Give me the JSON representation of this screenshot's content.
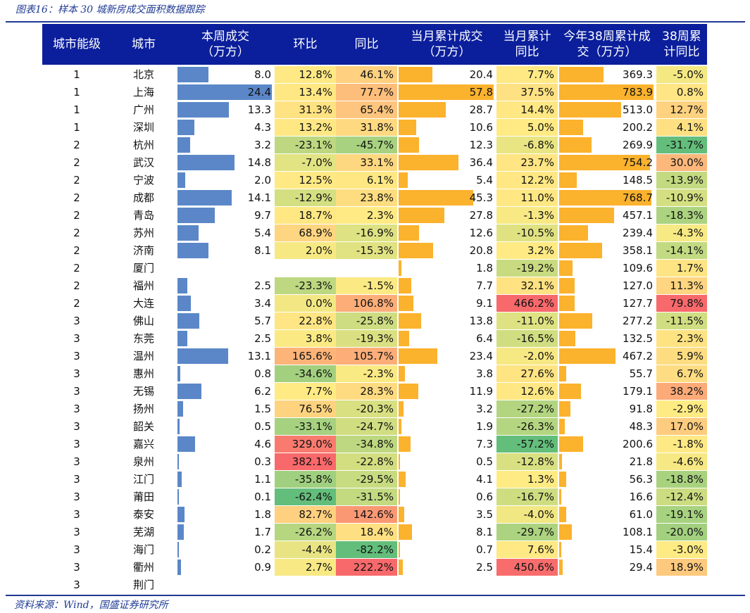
{
  "caption": "图表16：样本 30 城新房成交面积数据跟踪",
  "source": "资料来源：Wind，国盛证券研究所",
  "headers": {
    "tier": "城市能级",
    "city": "城市",
    "week": "本周成交\n（万方）",
    "mom": "环比",
    "yoy": "同比",
    "month": "当月累计成交\n（万方）",
    "month_yoy": "当月累计\n同比",
    "ytd": "今年38周累计成\n交（万方）",
    "ytd_yoy": "38周累\n计同比"
  },
  "colors": {
    "header_bg": "#0b1f9c",
    "bar_blue": "#5b87c8",
    "bar_orange": "#fbb22d",
    "scale_red": "#f8696b",
    "scale_yellow": "#ffeb84",
    "scale_green": "#63be7b"
  },
  "scales": {
    "week_max": 24.4,
    "month_max": 57.8,
    "ytd_max": 783.9
  },
  "rows": [
    {
      "tier": "1",
      "city": "北京",
      "week": "8.0",
      "mom": "12.8%",
      "yoy": "46.1%",
      "month": "20.4",
      "month_yoy": "7.7%",
      "ytd": "369.3",
      "ytd_yoy": "-5.0%"
    },
    {
      "tier": "1",
      "city": "上海",
      "week": "24.4",
      "mom": "13.4%",
      "yoy": "77.7%",
      "month": "57.8",
      "month_yoy": "37.5%",
      "ytd": "783.9",
      "ytd_yoy": "0.8%"
    },
    {
      "tier": "1",
      "city": "广州",
      "week": "13.3",
      "mom": "31.3%",
      "yoy": "65.4%",
      "month": "28.7",
      "month_yoy": "14.4%",
      "ytd": "513.0",
      "ytd_yoy": "12.7%"
    },
    {
      "tier": "1",
      "city": "深圳",
      "week": "4.3",
      "mom": "13.2%",
      "yoy": "31.8%",
      "month": "10.6",
      "month_yoy": "5.0%",
      "ytd": "200.2",
      "ytd_yoy": "4.1%"
    },
    {
      "tier": "2",
      "city": "杭州",
      "week": "3.2",
      "mom": "-23.1%",
      "yoy": "-45.7%",
      "month": "12.3",
      "month_yoy": "-6.8%",
      "ytd": "269.9",
      "ytd_yoy": "-31.7%"
    },
    {
      "tier": "2",
      "city": "武汉",
      "week": "14.8",
      "mom": "-7.0%",
      "yoy": "33.1%",
      "month": "36.4",
      "month_yoy": "23.7%",
      "ytd": "754.2",
      "ytd_yoy": "30.0%"
    },
    {
      "tier": "2",
      "city": "宁波",
      "week": "2.0",
      "mom": "12.5%",
      "yoy": "6.1%",
      "month": "5.4",
      "month_yoy": "12.2%",
      "ytd": "148.5",
      "ytd_yoy": "-13.9%"
    },
    {
      "tier": "2",
      "city": "成都",
      "week": "14.1",
      "mom": "-12.9%",
      "yoy": "23.8%",
      "month": "45.3",
      "month_yoy": "11.0%",
      "ytd": "768.7",
      "ytd_yoy": "-10.9%"
    },
    {
      "tier": "2",
      "city": "青岛",
      "week": "9.7",
      "mom": "18.7%",
      "yoy": "2.3%",
      "month": "27.8",
      "month_yoy": "-1.3%",
      "ytd": "457.1",
      "ytd_yoy": "-18.3%"
    },
    {
      "tier": "2",
      "city": "苏州",
      "week": "5.4",
      "mom": "68.9%",
      "yoy": "-16.9%",
      "month": "12.6",
      "month_yoy": "-10.5%",
      "ytd": "239.4",
      "ytd_yoy": "-4.3%"
    },
    {
      "tier": "2",
      "city": "济南",
      "week": "8.1",
      "mom": "2.0%",
      "yoy": "-15.3%",
      "month": "20.8",
      "month_yoy": "3.2%",
      "ytd": "358.1",
      "ytd_yoy": "-14.1%"
    },
    {
      "tier": "2",
      "city": "厦门",
      "week": "",
      "mom": "",
      "yoy": "",
      "month": "1.8",
      "month_yoy": "-19.2%",
      "ytd": "109.6",
      "ytd_yoy": "1.7%"
    },
    {
      "tier": "2",
      "city": "福州",
      "week": "2.5",
      "mom": "-23.3%",
      "yoy": "-1.5%",
      "month": "7.7",
      "month_yoy": "32.1%",
      "ytd": "127.0",
      "ytd_yoy": "11.3%"
    },
    {
      "tier": "2",
      "city": "大连",
      "week": "3.4",
      "mom": "0.0%",
      "yoy": "106.8%",
      "month": "9.1",
      "month_yoy": "466.2%",
      "ytd": "127.7",
      "ytd_yoy": "79.8%"
    },
    {
      "tier": "3",
      "city": "佛山",
      "week": "5.7",
      "mom": "22.8%",
      "yoy": "-25.8%",
      "month": "13.8",
      "month_yoy": "-11.0%",
      "ytd": "277.2",
      "ytd_yoy": "-11.5%"
    },
    {
      "tier": "3",
      "city": "东莞",
      "week": "2.5",
      "mom": "3.8%",
      "yoy": "-19.3%",
      "month": "6.4",
      "month_yoy": "-16.5%",
      "ytd": "132.5",
      "ytd_yoy": "2.3%"
    },
    {
      "tier": "3",
      "city": "温州",
      "week": "13.1",
      "mom": "165.6%",
      "yoy": "105.7%",
      "month": "23.4",
      "month_yoy": "-2.0%",
      "ytd": "467.2",
      "ytd_yoy": "5.9%"
    },
    {
      "tier": "3",
      "city": "惠州",
      "week": "0.8",
      "mom": "-34.6%",
      "yoy": "-2.3%",
      "month": "3.8",
      "month_yoy": "27.6%",
      "ytd": "55.7",
      "ytd_yoy": "6.7%"
    },
    {
      "tier": "3",
      "city": "无锡",
      "week": "6.2",
      "mom": "7.7%",
      "yoy": "28.3%",
      "month": "11.9",
      "month_yoy": "12.6%",
      "ytd": "179.1",
      "ytd_yoy": "38.2%"
    },
    {
      "tier": "3",
      "city": "扬州",
      "week": "1.5",
      "mom": "76.5%",
      "yoy": "-20.3%",
      "month": "3.2",
      "month_yoy": "-27.2%",
      "ytd": "91.8",
      "ytd_yoy": "-2.9%"
    },
    {
      "tier": "3",
      "city": "韶关",
      "week": "0.5",
      "mom": "-33.1%",
      "yoy": "-24.7%",
      "month": "1.9",
      "month_yoy": "-26.3%",
      "ytd": "48.3",
      "ytd_yoy": "17.0%"
    },
    {
      "tier": "3",
      "city": "嘉兴",
      "week": "4.6",
      "mom": "329.0%",
      "yoy": "-34.8%",
      "month": "7.3",
      "month_yoy": "-57.2%",
      "ytd": "200.6",
      "ytd_yoy": "-1.8%"
    },
    {
      "tier": "3",
      "city": "泉州",
      "week": "0.3",
      "mom": "382.1%",
      "yoy": "-22.8%",
      "month": "0.5",
      "month_yoy": "-12.8%",
      "ytd": "21.8",
      "ytd_yoy": "-4.6%"
    },
    {
      "tier": "3",
      "city": "江门",
      "week": "1.1",
      "mom": "-35.8%",
      "yoy": "-29.5%",
      "month": "4.1",
      "month_yoy": "1.3%",
      "ytd": "56.3",
      "ytd_yoy": "-18.8%"
    },
    {
      "tier": "3",
      "city": "莆田",
      "week": "0.1",
      "mom": "-62.4%",
      "yoy": "-31.5%",
      "month": "0.6",
      "month_yoy": "-16.7%",
      "ytd": "16.6",
      "ytd_yoy": "-12.4%"
    },
    {
      "tier": "3",
      "city": "泰安",
      "week": "1.8",
      "mom": "82.7%",
      "yoy": "142.6%",
      "month": "3.5",
      "month_yoy": "-4.0%",
      "ytd": "61.0",
      "ytd_yoy": "-19.1%"
    },
    {
      "tier": "3",
      "city": "芜湖",
      "week": "1.7",
      "mom": "-26.2%",
      "yoy": "18.4%",
      "month": "8.1",
      "month_yoy": "-29.7%",
      "ytd": "108.1",
      "ytd_yoy": "-20.0%"
    },
    {
      "tier": "3",
      "city": "海门",
      "week": "0.2",
      "mom": "-4.4%",
      "yoy": "-82.2%",
      "month": "0.7",
      "month_yoy": "7.6%",
      "ytd": "15.4",
      "ytd_yoy": "-3.0%"
    },
    {
      "tier": "3",
      "city": "衢州",
      "week": "0.9",
      "mom": "2.7%",
      "yoy": "222.2%",
      "month": "2.5",
      "month_yoy": "450.6%",
      "ytd": "29.4",
      "ytd_yoy": "18.9%"
    },
    {
      "tier": "3",
      "city": "荆门",
      "week": "",
      "mom": "",
      "yoy": "",
      "month": "",
      "month_yoy": "",
      "ytd": "",
      "ytd_yoy": ""
    }
  ]
}
